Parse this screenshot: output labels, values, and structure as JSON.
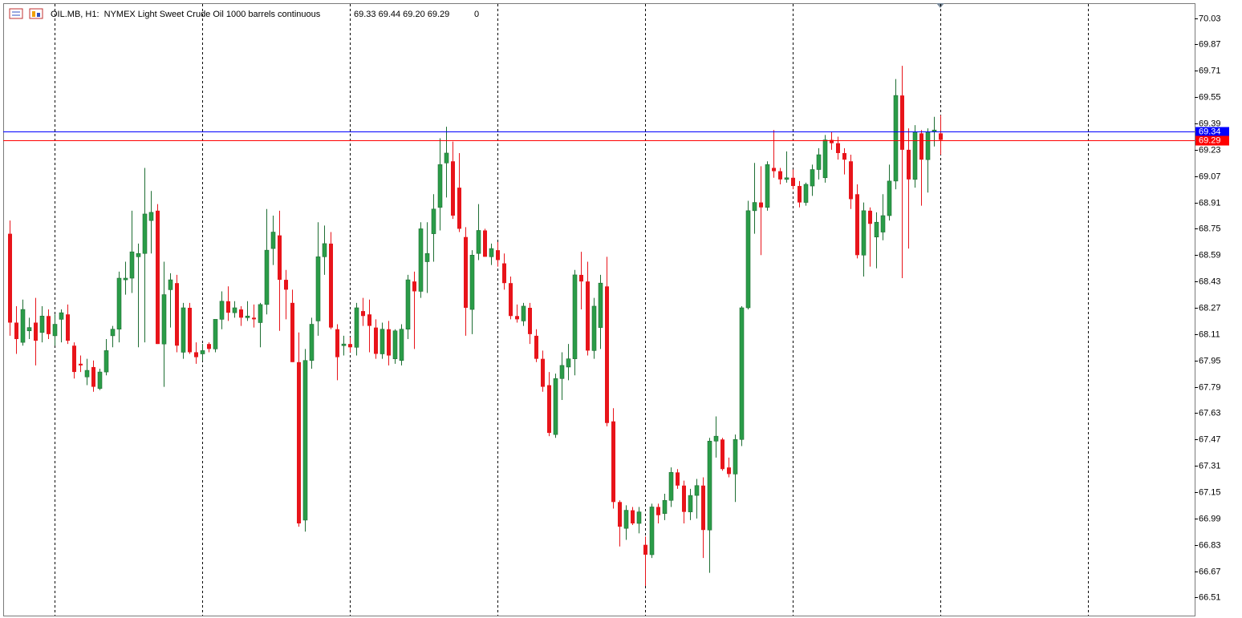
{
  "chart_data": {
    "type": "candlestick",
    "title": "OIL.MB, H1:  NYMEX Light Sweet Crude Oil 1000 barrels continuous",
    "header_values": "69.33 69.44 69.20 69.29",
    "header_volume": "0",
    "open": [
      68.72,
      68.18,
      68.06,
      68.13,
      68.18,
      68.12,
      68.22,
      68.1,
      68.2,
      68.23,
      68.04,
      67.93,
      67.85,
      67.91,
      67.78,
      67.88,
      68.1,
      68.14,
      68.44,
      68.45,
      68.58,
      68.6,
      68.8,
      68.86,
      68.05,
      68.38,
      68.42,
      68.0,
      68.27,
      68.0,
      67.99,
      68.05,
      68.02,
      68.2,
      68.31,
      68.24,
      68.26,
      68.21,
      68.21,
      68.18,
      68.29,
      68.63,
      68.71,
      68.44,
      68.3,
      67.94,
      66.98,
      67.95,
      68.19,
      68.58,
      68.66,
      68.14,
      68.04,
      68.05,
      68.03,
      68.25,
      68.23,
      68.15,
      67.99,
      68.14,
      67.96,
      67.95,
      68.14,
      68.43,
      68.37,
      68.55,
      68.72,
      68.88,
      69.15,
      69.16,
      69.0,
      68.7,
      68.26,
      68.6,
      68.74,
      68.58,
      68.62,
      68.54,
      68.42,
      68.22,
      68.19,
      68.27,
      68.1,
      67.96,
      67.8,
      67.5,
      67.84,
      67.91,
      67.96,
      68.47,
      68.43,
      68.01,
      68.15,
      68.4,
      67.58,
      67.09,
      66.93,
      67.04,
      66.96,
      66.83,
      66.77,
      67.06,
      67.02,
      67.1,
      67.27,
      67.19,
      67.03,
      67.13,
      67.19,
      66.92,
      67.46,
      67.47,
      67.3,
      67.26,
      67.47,
      68.27,
      68.86,
      68.91,
      68.88,
      69.12,
      69.1,
      69.05,
      69.06,
      69.01,
      68.91,
      69.01,
      69.11,
      69.06,
      69.29,
      69.27,
      69.21,
      69.16,
      68.96,
      68.59,
      68.86,
      68.7,
      68.73,
      68.83,
      69.04,
      69.56,
      69.23,
      69.05,
      69.33,
      69.17,
      69.34,
      69.33
    ],
    "high": [
      68.8,
      68.28,
      68.32,
      68.21,
      68.33,
      68.28,
      68.26,
      68.23,
      68.26,
      68.29,
      68.06,
      67.98,
      67.96,
      67.95,
      67.9,
      68.08,
      68.16,
      68.49,
      68.55,
      68.86,
      68.66,
      69.12,
      68.98,
      68.9,
      68.55,
      68.48,
      68.47,
      68.3,
      68.3,
      68.06,
      68.05,
      68.06,
      68.2,
      68.37,
      68.4,
      68.31,
      68.28,
      68.31,
      68.29,
      68.3,
      68.87,
      68.83,
      68.86,
      68.5,
      68.38,
      68.12,
      68.02,
      68.21,
      68.79,
      68.77,
      68.73,
      68.17,
      68.1,
      68.09,
      68.3,
      68.33,
      68.32,
      68.2,
      68.18,
      68.19,
      68.14,
      68.17,
      68.47,
      68.49,
      68.79,
      68.79,
      68.96,
      69.3,
      69.37,
      69.28,
      69.21,
      68.76,
      68.62,
      68.9,
      68.75,
      68.66,
      68.67,
      68.6,
      68.46,
      68.29,
      68.3,
      68.3,
      68.14,
      68.01,
      67.88,
      67.87,
      68.0,
      68.05,
      68.5,
      68.61,
      68.55,
      68.33,
      68.47,
      68.58,
      67.66,
      67.1,
      67.07,
      67.06,
      67.06,
      66.88,
      67.08,
      67.08,
      67.14,
      67.3,
      67.29,
      67.22,
      67.17,
      67.23,
      67.24,
      67.48,
      67.61,
      67.48,
      67.36,
      67.5,
      68.28,
      68.92,
      69.15,
      69.13,
      69.16,
      69.35,
      69.12,
      69.22,
      69.11,
      69.04,
      69.03,
      69.14,
      69.24,
      69.32,
      69.34,
      69.31,
      69.24,
      69.2,
      69.02,
      68.91,
      68.88,
      68.85,
      68.96,
      69.14,
      69.66,
      69.74,
      69.36,
      69.38,
      69.35,
      69.36,
      69.43,
      69.44
    ],
    "low": [
      68.1,
      67.99,
      68.04,
      68.08,
      67.92,
      68.06,
      68.08,
      68.04,
      68.06,
      68.05,
      67.84,
      67.88,
      67.8,
      67.76,
      67.77,
      67.86,
      68.03,
      68.06,
      68.35,
      68.36,
      68.03,
      68.06,
      68.6,
      68.05,
      67.79,
      68.15,
      68.0,
      67.96,
      67.99,
      67.93,
      67.95,
      68.0,
      68.0,
      68.14,
      68.19,
      68.21,
      68.16,
      68.19,
      68.15,
      68.03,
      68.23,
      68.53,
      68.13,
      68.2,
      67.94,
      66.94,
      66.91,
      67.9,
      68.1,
      68.47,
      68.14,
      67.83,
      67.98,
      68.0,
      67.98,
      68.16,
      68.0,
      67.96,
      67.96,
      67.92,
      67.93,
      67.92,
      68.08,
      68.02,
      68.33,
      68.36,
      68.55,
      68.74,
      68.94,
      68.81,
      68.73,
      68.1,
      68.11,
      68.56,
      68.58,
      68.53,
      68.52,
      68.38,
      68.2,
      68.18,
      68.16,
      68.05,
      67.94,
      67.76,
      67.49,
      67.48,
      67.71,
      67.83,
      67.86,
      68.26,
      67.98,
      67.96,
      68.02,
      67.55,
      67.05,
      66.82,
      66.86,
      66.95,
      66.9,
      66.58,
      66.75,
      66.96,
      66.98,
      67.06,
      67.17,
      66.96,
      66.98,
      66.99,
      66.75,
      66.66,
      67.36,
      67.28,
      67.24,
      67.09,
      67.43,
      68.26,
      68.72,
      68.59,
      68.86,
      69.06,
      69.02,
      69.03,
      68.99,
      68.88,
      68.89,
      68.95,
      69.05,
      69.03,
      69.23,
      69.17,
      69.08,
      68.87,
      68.57,
      68.46,
      68.52,
      68.51,
      68.68,
      68.8,
      68.99,
      68.45,
      68.63,
      69.0,
      68.89,
      68.97,
      69.25,
      69.2
    ],
    "close": [
      68.18,
      68.08,
      68.26,
      68.15,
      68.07,
      68.22,
      68.11,
      68.17,
      68.24,
      68.07,
      67.88,
      67.92,
      67.89,
      67.79,
      67.88,
      68.01,
      68.14,
      68.45,
      68.45,
      68.61,
      68.6,
      68.84,
      68.85,
      68.05,
      68.35,
      68.44,
      68.04,
      68.27,
      68.0,
      67.97,
      68.01,
      68.02,
      68.2,
      68.31,
      68.24,
      68.27,
      68.21,
      68.22,
      68.2,
      68.29,
      68.62,
      68.73,
      68.44,
      68.38,
      67.94,
      66.96,
      67.95,
      68.17,
      68.58,
      68.66,
      68.15,
      67.97,
      68.05,
      68.03,
      68.27,
      68.22,
      68.16,
      67.99,
      68.14,
      67.98,
      68.13,
      68.14,
      68.44,
      68.37,
      68.75,
      68.6,
      68.87,
      69.14,
      69.21,
      68.83,
      68.75,
      68.27,
      68.59,
      68.74,
      68.58,
      68.63,
      68.56,
      68.42,
      68.22,
      68.2,
      68.28,
      68.11,
      67.96,
      67.79,
      67.51,
      67.84,
      67.92,
      67.96,
      68.47,
      68.43,
      68.01,
      68.28,
      68.42,
      67.57,
      67.09,
      66.94,
      67.04,
      66.96,
      67.03,
      66.77,
      67.06,
      67.01,
      67.1,
      67.27,
      67.19,
      67.03,
      67.13,
      67.19,
      66.92,
      67.46,
      67.49,
      67.29,
      67.26,
      67.47,
      68.27,
      68.86,
      68.91,
      68.88,
      69.14,
      69.1,
      69.05,
      69.06,
      69.01,
      68.91,
      69.02,
      69.11,
      69.2,
      69.29,
      69.27,
      69.21,
      69.17,
      68.93,
      68.59,
      68.86,
      68.78,
      68.79,
      68.83,
      69.04,
      69.56,
      69.23,
      69.05,
      69.34,
      69.17,
      69.34,
      69.35,
      69.29
    ],
    "up_color": "#2a9c48",
    "down_color": "#e8141a",
    "ylim": [
      66.4,
      70.14
    ],
    "yticks": [
      70.03,
      69.87,
      69.71,
      69.55,
      69.39,
      69.23,
      69.07,
      68.91,
      68.75,
      68.59,
      68.43,
      68.27,
      68.11,
      67.95,
      67.79,
      67.63,
      67.47,
      67.31,
      67.15,
      66.99,
      66.83,
      66.67,
      66.51
    ],
    "ask": 69.34,
    "ask_color": "#0000ff",
    "bid": 69.29,
    "bid_color": "#ff0000"
  }
}
